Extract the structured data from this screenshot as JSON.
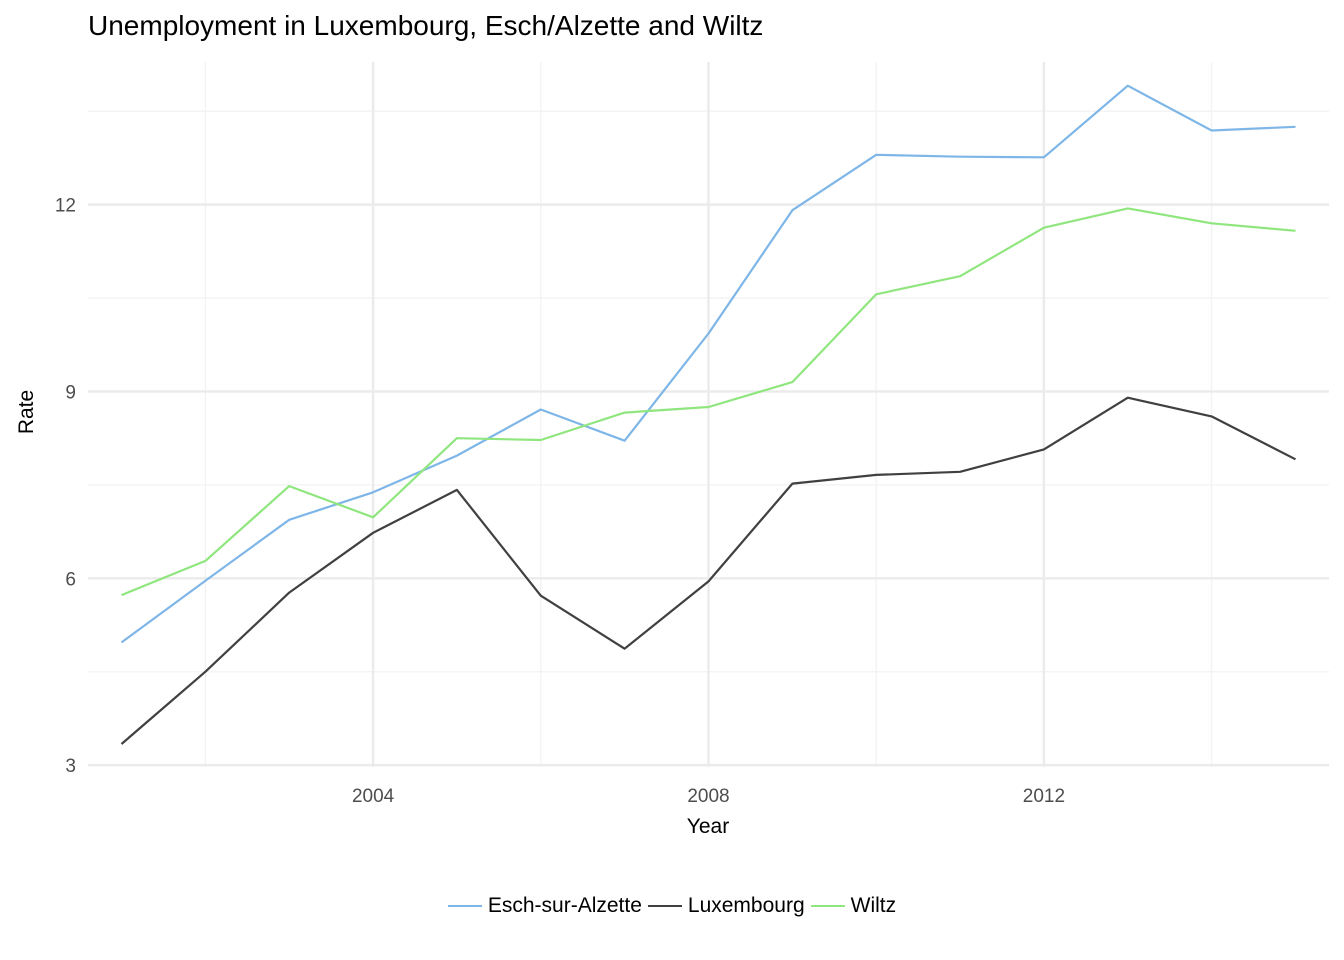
{
  "chart_data": {
    "type": "line",
    "title": "Unemployment in Luxembourg, Esch/Alzette and Wiltz",
    "xlabel": "Year",
    "ylabel": "Rate",
    "xlim": [
      2000.6,
      2015.4
    ],
    "ylim": [
      2.97,
      14.29
    ],
    "x_ticks": [
      2004,
      2008,
      2012
    ],
    "x_minor": [
      2002,
      2006,
      2010,
      2014
    ],
    "y_ticks": [
      3,
      6,
      9,
      12
    ],
    "y_minor": [
      4.5,
      7.5,
      10.5,
      13.5
    ],
    "grid": true,
    "legend_position": "bottom",
    "x": [
      2001,
      2002,
      2003,
      2004,
      2005,
      2006,
      2007,
      2008,
      2009,
      2010,
      2011,
      2012,
      2013,
      2014,
      2015
    ],
    "series": [
      {
        "name": "Esch-sur-Alzette",
        "color": "#7eb6e8",
        "values": [
          4.97,
          5.96,
          6.94,
          7.38,
          7.97,
          8.71,
          8.21,
          9.93,
          11.91,
          12.8,
          12.77,
          12.76,
          13.91,
          13.19,
          13.25
        ]
      },
      {
        "name": "Luxembourg",
        "color": "#404040",
        "values": [
          3.34,
          4.5,
          5.77,
          6.73,
          7.42,
          5.72,
          4.87,
          5.95,
          7.52,
          7.66,
          7.71,
          8.07,
          8.9,
          8.6,
          7.91
        ]
      },
      {
        "name": "Wiltz",
        "color": "#90e67e",
        "values": [
          5.73,
          6.28,
          7.48,
          6.98,
          8.25,
          8.22,
          8.66,
          8.75,
          9.15,
          10.56,
          10.85,
          11.63,
          11.94,
          11.7,
          11.58
        ]
      }
    ]
  }
}
